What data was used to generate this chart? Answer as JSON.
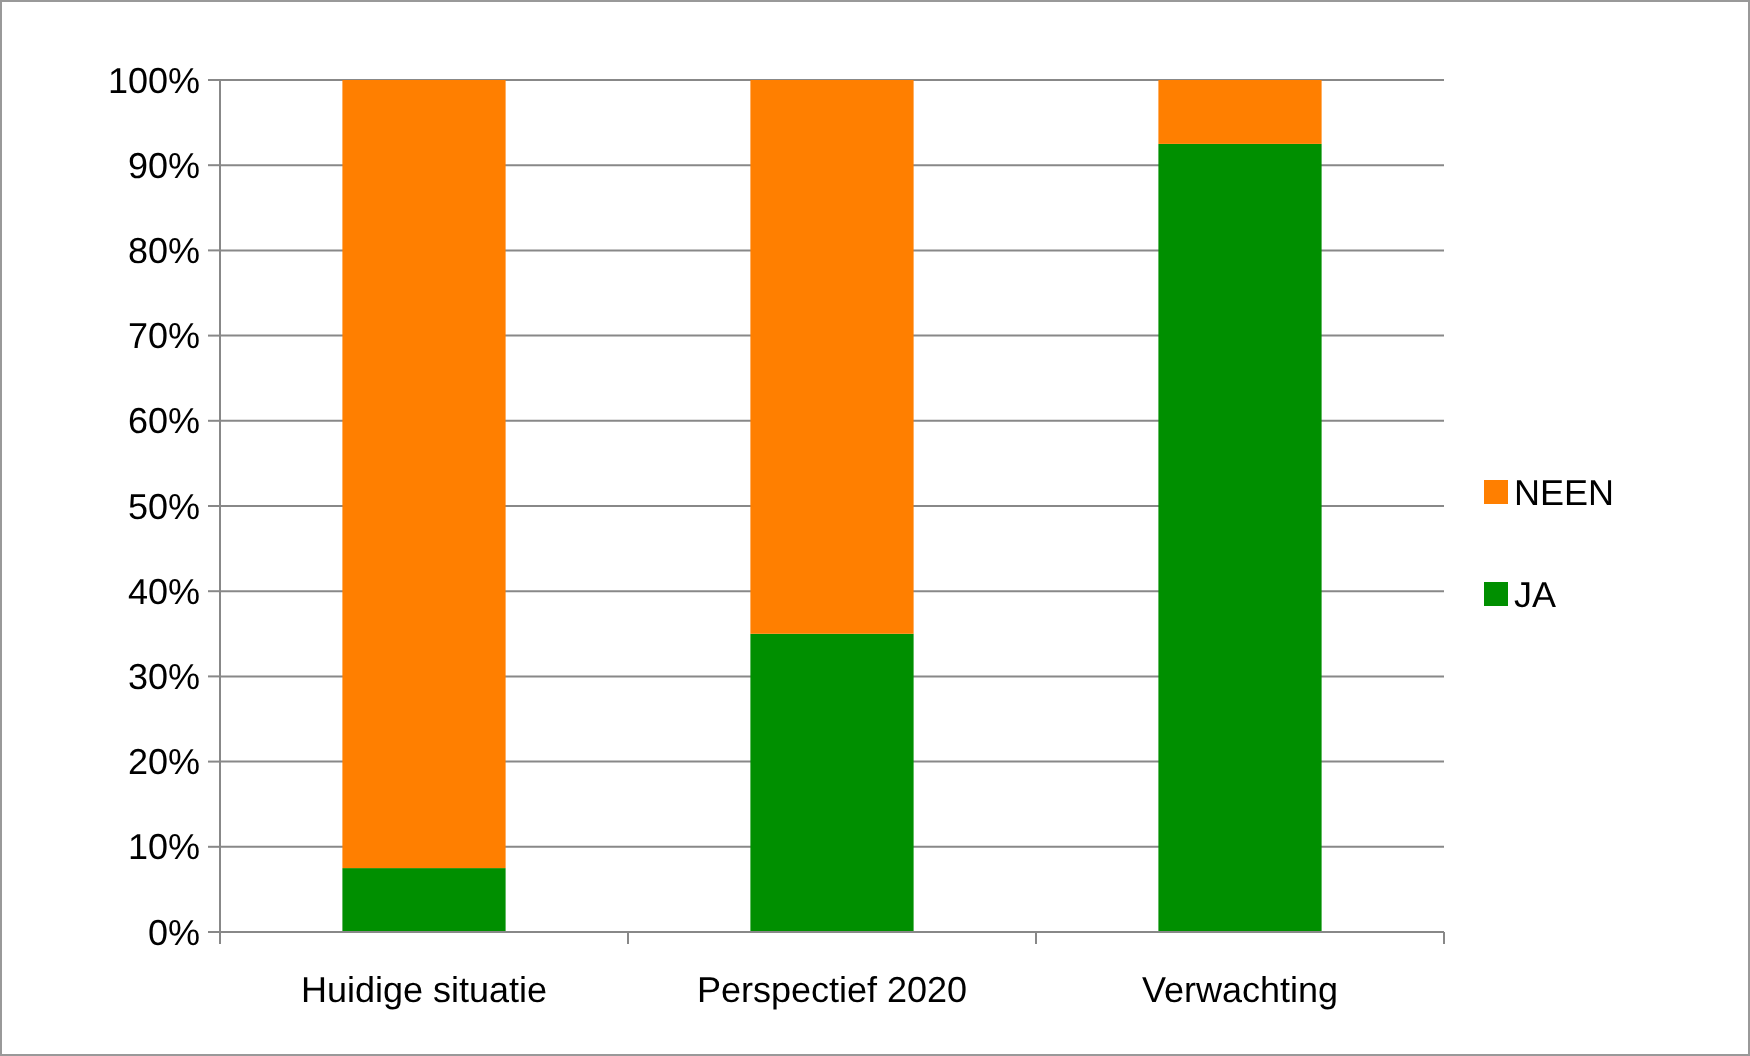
{
  "chart_data": {
    "type": "bar",
    "stacked": true,
    "categories": [
      "Huidige situatie",
      "Perspectief 2020",
      "Verwachting"
    ],
    "series": [
      {
        "name": "JA",
        "color": "#008f00",
        "values": [
          7.5,
          35,
          92.5
        ]
      },
      {
        "name": "NEEN",
        "color": "#ff7f00",
        "values": [
          92.5,
          65,
          7.5
        ]
      }
    ],
    "ylim": [
      0,
      100
    ],
    "yticks": [
      {
        "value": 0,
        "label": "0%"
      },
      {
        "value": 10,
        "label": "10%"
      },
      {
        "value": 20,
        "label": "20%"
      },
      {
        "value": 30,
        "label": "30%"
      },
      {
        "value": 40,
        "label": "40%"
      },
      {
        "value": 50,
        "label": "50%"
      },
      {
        "value": 60,
        "label": "60%"
      },
      {
        "value": 70,
        "label": "70%"
      },
      {
        "value": 80,
        "label": "80%"
      },
      {
        "value": 90,
        "label": "90%"
      },
      {
        "value": 100,
        "label": "100%"
      }
    ],
    "grid": "y",
    "legend": "right"
  }
}
